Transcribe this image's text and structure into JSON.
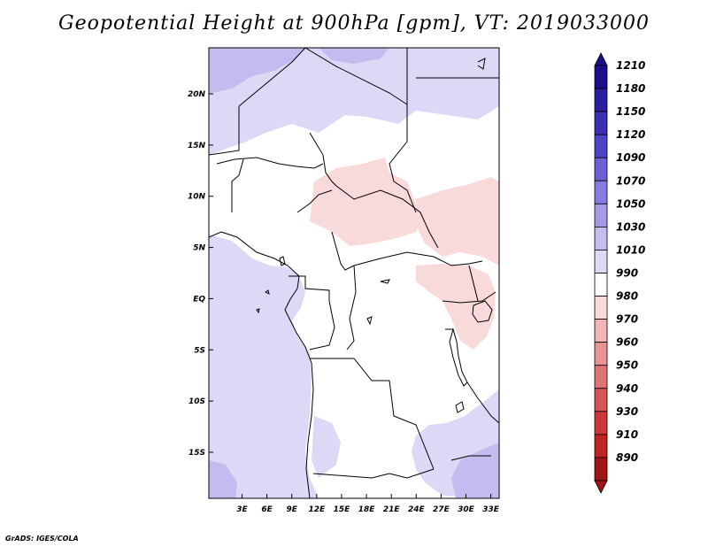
{
  "title": "Geopotential Height at 900hPa [gpm], VT: 2019033000",
  "footer": "GrADS: IGES/COLA",
  "map": {
    "lon_range": [
      -1,
      34
    ],
    "lat_range": [
      -19.5,
      24.5
    ],
    "lon_ticks": [
      {
        "value": 3,
        "label": "3E"
      },
      {
        "value": 6,
        "label": "6E"
      },
      {
        "value": 9,
        "label": "9E"
      },
      {
        "value": 12,
        "label": "12E"
      },
      {
        "value": 15,
        "label": "15E"
      },
      {
        "value": 18,
        "label": "18E"
      },
      {
        "value": 21,
        "label": "21E"
      },
      {
        "value": 24,
        "label": "24E"
      },
      {
        "value": 27,
        "label": "27E"
      },
      {
        "value": 30,
        "label": "30E"
      },
      {
        "value": 33,
        "label": "33E"
      }
    ],
    "lat_ticks": [
      {
        "value": 20,
        "label": "20N"
      },
      {
        "value": 15,
        "label": "15N"
      },
      {
        "value": 10,
        "label": "10N"
      },
      {
        "value": 5,
        "label": "5N"
      },
      {
        "value": 0,
        "label": "EQ"
      },
      {
        "value": -5,
        "label": "5S"
      },
      {
        "value": -10,
        "label": "10S"
      },
      {
        "value": -15,
        "label": "15S"
      }
    ]
  },
  "colorbar": {
    "levels": [
      "1210",
      "1180",
      "1150",
      "1120",
      "1090",
      "1070",
      "1050",
      "1030",
      "1010",
      "990",
      "980",
      "970",
      "960",
      "950",
      "940",
      "930",
      "910",
      "890"
    ],
    "colors": [
      "#1a0e8a",
      "#2a1fa0",
      "#3b30b4",
      "#4d43c6",
      "#6a5fd4",
      "#877ce0",
      "#a49ae8",
      "#c3bcf0",
      "#dcd9f6",
      "#ffffff",
      "#f9dada",
      "#f2b4b4",
      "#e89494",
      "#de7474",
      "#d65454",
      "#cc3838",
      "#bf2323",
      "#a01515"
    ]
  }
}
